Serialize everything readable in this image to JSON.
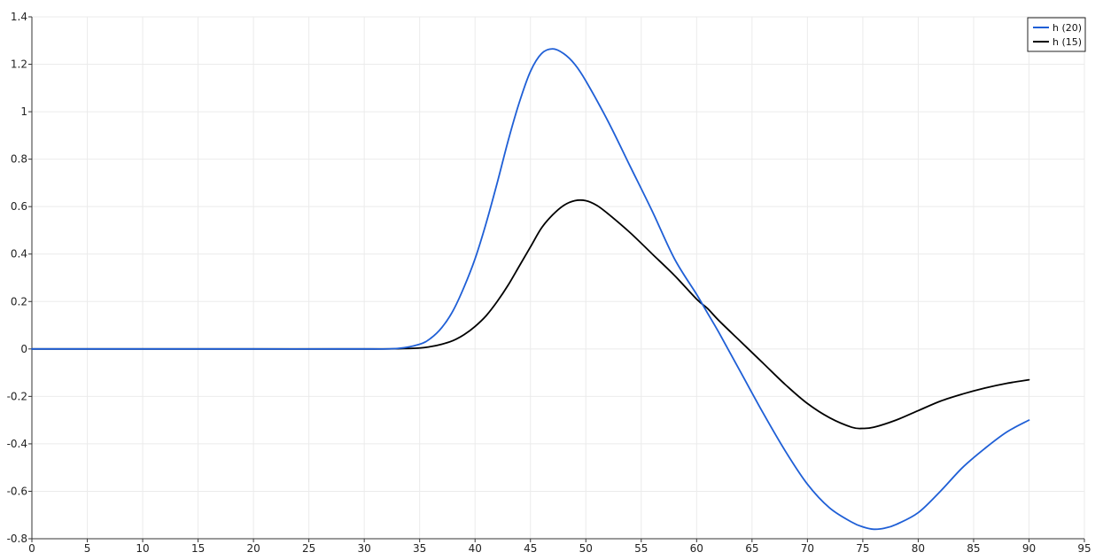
{
  "chart_data": {
    "type": "line",
    "title": "",
    "xlabel": "",
    "ylabel": "",
    "xlim": [
      0,
      95
    ],
    "ylim": [
      -0.8,
      1.4
    ],
    "x_ticks": [
      0,
      5,
      10,
      15,
      20,
      25,
      30,
      35,
      40,
      45,
      50,
      55,
      60,
      65,
      70,
      75,
      80,
      85,
      90,
      95
    ],
    "x_tick_labels": [
      "0",
      "5",
      "10",
      "15",
      "20",
      "25",
      "30",
      "35",
      "40",
      "45",
      "50",
      "55",
      "60",
      "65",
      "70",
      "75",
      "80",
      "85",
      "90",
      "95"
    ],
    "y_ticks": [
      -0.8,
      -0.6,
      -0.4,
      -0.2,
      0,
      0.2,
      0.4,
      0.6,
      0.8,
      1,
      1.2,
      1.4
    ],
    "y_tick_labels": [
      "-0.8",
      "-0.6",
      "-0.4",
      "-0.2",
      "0",
      "0.2",
      "0.4",
      "0.6",
      "0.8",
      "1",
      "1.2",
      "1.4"
    ],
    "grid": true,
    "legend_position": "top-right",
    "series": [
      {
        "name": "h (20)",
        "color": "#1f5fd6",
        "x": [
          0,
          10,
          20,
          30,
          33,
          35,
          36,
          37,
          38,
          39,
          40,
          41,
          42,
          43,
          44,
          45,
          46,
          47,
          48,
          49,
          50,
          52,
          54,
          56,
          58,
          60,
          61,
          62,
          64,
          66,
          68,
          70,
          72,
          74,
          75,
          76,
          77,
          78,
          80,
          82,
          84,
          86,
          88,
          90
        ],
        "y": [
          0,
          0,
          0,
          0,
          0.002,
          0.02,
          0.045,
          0.09,
          0.16,
          0.26,
          0.38,
          0.53,
          0.7,
          0.88,
          1.04,
          1.17,
          1.245,
          1.265,
          1.245,
          1.2,
          1.13,
          0.96,
          0.77,
          0.58,
          0.38,
          0.23,
          0.15,
          0.07,
          -0.1,
          -0.27,
          -0.43,
          -0.57,
          -0.67,
          -0.73,
          -0.75,
          -0.76,
          -0.755,
          -0.74,
          -0.69,
          -0.6,
          -0.5,
          -0.42,
          -0.35,
          -0.3
        ]
      },
      {
        "name": "h (15)",
        "color": "#000000",
        "x": [
          0,
          10,
          20,
          30,
          33,
          35,
          36,
          37,
          38,
          39,
          40,
          41,
          42,
          43,
          44,
          45,
          46,
          47,
          48,
          49,
          50,
          51,
          52,
          54,
          56,
          58,
          60,
          61,
          62,
          64,
          66,
          68,
          70,
          72,
          74,
          75,
          76,
          78,
          80,
          82,
          84,
          86,
          88,
          90
        ],
        "y": [
          0,
          0,
          0,
          0,
          0.001,
          0.004,
          0.01,
          0.02,
          0.035,
          0.06,
          0.095,
          0.14,
          0.2,
          0.27,
          0.35,
          0.43,
          0.51,
          0.565,
          0.605,
          0.625,
          0.625,
          0.605,
          0.57,
          0.49,
          0.4,
          0.31,
          0.21,
          0.17,
          0.12,
          0.03,
          -0.06,
          -0.15,
          -0.23,
          -0.29,
          -0.33,
          -0.335,
          -0.33,
          -0.3,
          -0.26,
          -0.22,
          -0.19,
          -0.165,
          -0.145,
          -0.13
        ]
      }
    ]
  }
}
